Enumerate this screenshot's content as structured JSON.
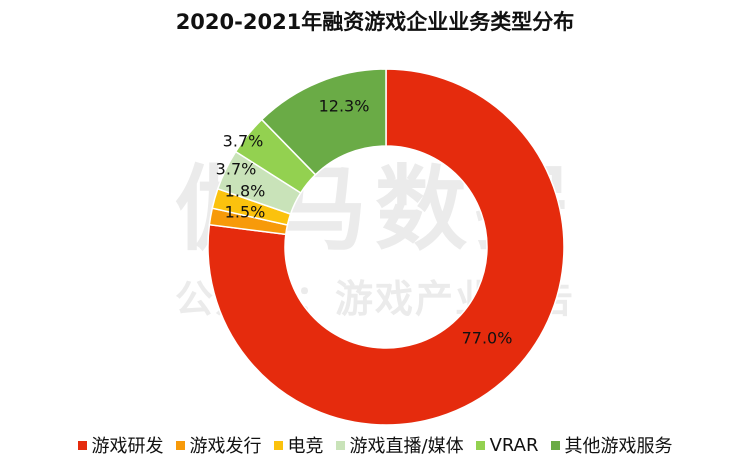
{
  "title": "2020-2021年融资游戏企业业务类型分布",
  "watermark": {
    "line1": "伽马数据",
    "line2": "公众号：游戏产业报告"
  },
  "chart_data": {
    "type": "pie",
    "donut": true,
    "title": "2020-2021年融资游戏企业业务类型分布",
    "slices": [
      {
        "label": "游戏研发",
        "value": 77.0,
        "value_label": "77.0%",
        "color": "#e52b0d"
      },
      {
        "label": "游戏发行",
        "value": 1.5,
        "value_label": "1.5%",
        "color": "#f79a0a"
      },
      {
        "label": "电竞",
        "value": 1.8,
        "value_label": "1.8%",
        "color": "#fbc20d"
      },
      {
        "label": "游戏直播/媒体",
        "value": 3.7,
        "value_label": "3.7%",
        "color": "#c9e3b9"
      },
      {
        "label": "VRAR",
        "value": 3.7,
        "value_label": "3.7%",
        "color": "#93d150"
      },
      {
        "label": "其他游戏服务",
        "value": 12.3,
        "value_label": "12.3%",
        "color": "#6aab46"
      }
    ],
    "legend_position": "bottom"
  }
}
